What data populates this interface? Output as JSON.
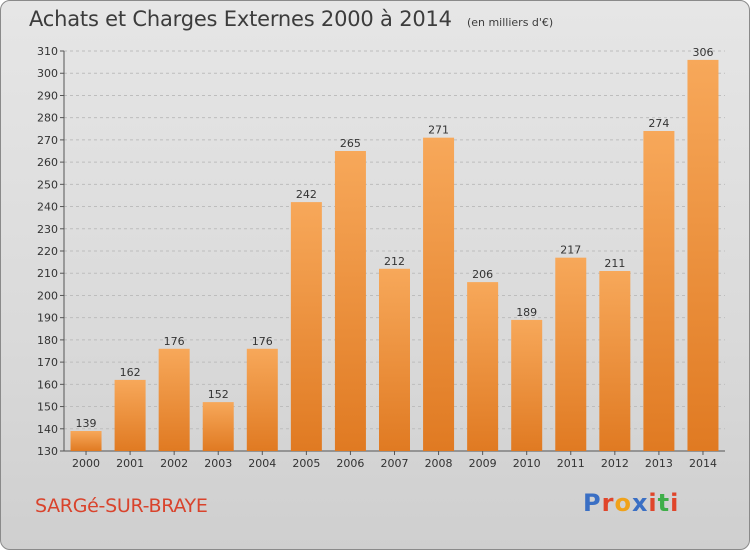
{
  "title": "Achats et Charges Externes 2000 à 2014",
  "unit": "(en milliers d'€)",
  "commune": "SARGé-SUR-BRAYE",
  "logo": {
    "letters": [
      "P",
      "r",
      "o",
      "x",
      "i",
      "t",
      "i"
    ],
    "colors": [
      "#3a6fc4",
      "#e0452a",
      "#f0a21a",
      "#3a6fc4",
      "#e0452a",
      "#3fae49",
      "#e0452a"
    ]
  },
  "colors": {
    "bar_top": "#f7a85a",
    "bar_bottom": "#e07a22",
    "grid": "#bdbdbd"
  },
  "chart_data": {
    "type": "bar",
    "categories": [
      "2000",
      "2001",
      "2002",
      "2003",
      "2004",
      "2005",
      "2006",
      "2007",
      "2008",
      "2009",
      "2010",
      "2011",
      "2012",
      "2013",
      "2014"
    ],
    "values": [
      139,
      162,
      176,
      152,
      176,
      242,
      265,
      212,
      271,
      206,
      189,
      217,
      211,
      274,
      306
    ],
    "ylim": [
      130,
      310
    ],
    "yticks": [
      130,
      140,
      150,
      160,
      170,
      180,
      190,
      200,
      210,
      220,
      230,
      240,
      250,
      260,
      270,
      280,
      290,
      300,
      310
    ],
    "grid": true,
    "title": "Achats et Charges Externes 2000 à 2014",
    "xlabel": "",
    "ylabel": ""
  }
}
